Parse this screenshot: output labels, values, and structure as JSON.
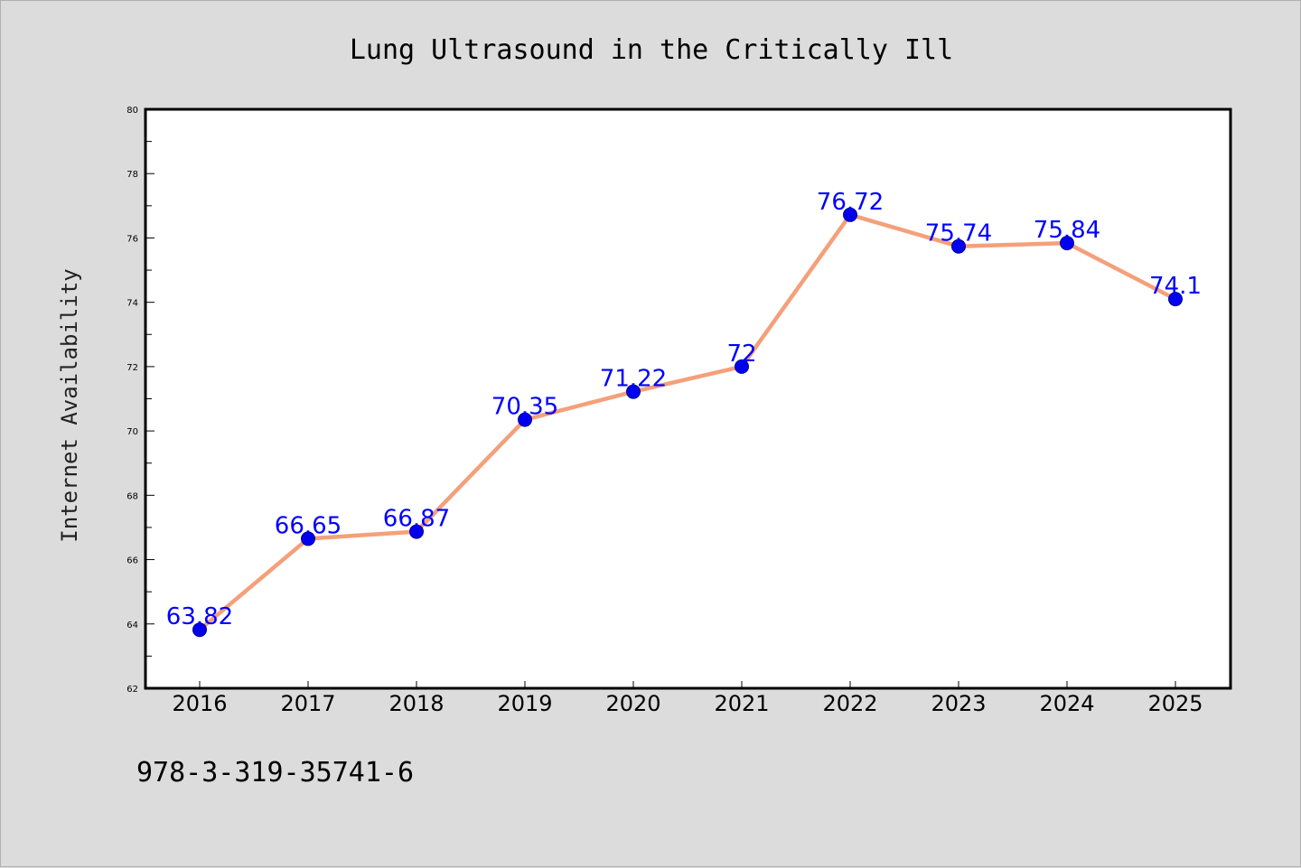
{
  "chart_data": {
    "type": "line",
    "title": "Lung Ultrasound in the Critically Ill",
    "xlabel": "",
    "ylabel": "Internet Availability",
    "categories": [
      "2016",
      "2017",
      "2018",
      "2019",
      "2020",
      "2021",
      "2022",
      "2023",
      "2024",
      "2025"
    ],
    "series": [
      {
        "values": [
          63.82,
          66.65,
          66.87,
          70.35,
          71.22,
          72,
          76.72,
          75.74,
          75.84,
          74.1
        ],
        "data_labels": [
          "63.82",
          "66.65",
          "66.87",
          "70.35",
          "71.22",
          "72",
          "76.72",
          "75.74",
          "75.84",
          "74.1"
        ],
        "line_color": "#f4a07a",
        "marker_color": "#0000ee"
      }
    ],
    "ylim": [
      62,
      80
    ],
    "yticks": [
      "62",
      "64",
      "66",
      "68",
      "70",
      "72",
      "74",
      "76",
      "78",
      "80"
    ],
    "grid": false,
    "legend": "none"
  },
  "footer": {
    "isbn": "978-3-319-35741-6"
  },
  "colors": {
    "background": "#dcdcdc",
    "plot_background": "#ffffff",
    "label_color": "#0000ff"
  }
}
